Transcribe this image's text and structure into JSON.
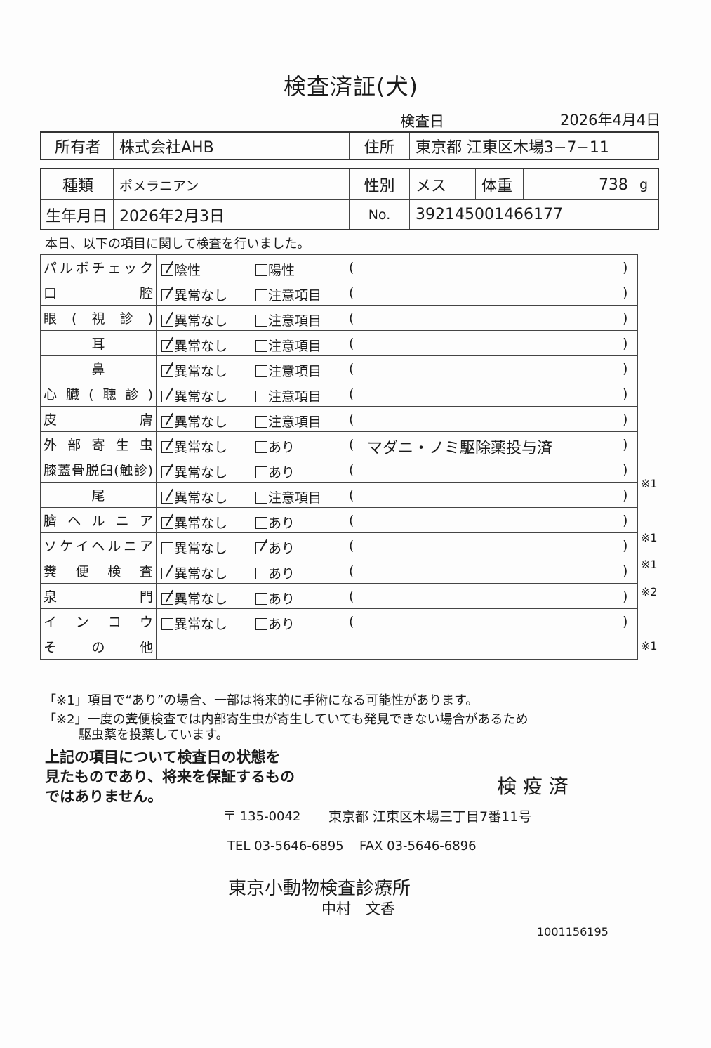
{
  "title": "検査済証(犬)",
  "exam_date_label": "検査日",
  "exam_date": "2026年4月4日",
  "owner": {
    "label": "所有者",
    "value": "株式会社AHB",
    "address_label": "住所",
    "address": "東京都 江東区木場3−7−11"
  },
  "pet": {
    "breed_label": "種類",
    "breed": "ポメラニアン",
    "sex_label": "性別",
    "sex": "メス",
    "weight_label": "体重",
    "weight": "738",
    "weight_unit": "g",
    "birth_label": "生年月日",
    "birth": "2026年2月3日",
    "no_label": "No.",
    "no": "392145001466177"
  },
  "intro": "本日、以下の項目に関して検査を行いました。",
  "items": [
    {
      "label": "パルボチェック",
      "opt1": "陰性",
      "opt2": "陽性",
      "checked": 1,
      "comment": "",
      "note": ""
    },
    {
      "label": "口 腔",
      "opt1": "異常なし",
      "opt2": "注意項目",
      "checked": 1,
      "comment": "",
      "note": ""
    },
    {
      "label": "眼(視診)",
      "opt1": "異常なし",
      "opt2": "注意項目",
      "checked": 1,
      "comment": "",
      "note": ""
    },
    {
      "label": "耳",
      "opt1": "異常なし",
      "opt2": "注意項目",
      "checked": 1,
      "comment": "",
      "note": "",
      "center": true
    },
    {
      "label": "鼻",
      "opt1": "異常なし",
      "opt2": "注意項目",
      "checked": 1,
      "comment": "",
      "note": "",
      "center": true
    },
    {
      "label": "心臓(聴診)",
      "opt1": "異常なし",
      "opt2": "注意項目",
      "checked": 1,
      "comment": "",
      "note": ""
    },
    {
      "label": "皮 膚",
      "opt1": "異常なし",
      "opt2": "注意項目",
      "checked": 1,
      "comment": "",
      "note": ""
    },
    {
      "label": "外部寄生虫",
      "opt1": "異常なし",
      "opt2": "あり",
      "checked": 1,
      "comment": "マダニ・ノミ駆除薬投与済",
      "note": ""
    },
    {
      "label": "膝蓋骨脱臼(触診)",
      "opt1": "異常なし",
      "opt2": "あり",
      "checked": 1,
      "comment": "",
      "note": "※1"
    },
    {
      "label": "尾",
      "opt1": "異常なし",
      "opt2": "注意項目",
      "checked": 1,
      "comment": "",
      "note": "",
      "center": true
    },
    {
      "label": "臍ヘルニア",
      "opt1": "異常なし",
      "opt2": "あり",
      "checked": 1,
      "comment": "",
      "note": "※1"
    },
    {
      "label": "ソケイヘルニア",
      "opt1": "異常なし",
      "opt2": "あり",
      "checked": 2,
      "comment": "",
      "note": "※1"
    },
    {
      "label": "糞便検査",
      "opt1": "異常なし",
      "opt2": "あり",
      "checked": 1,
      "comment": "",
      "note": "※2"
    },
    {
      "label": "泉 門",
      "opt1": "異常なし",
      "opt2": "あり",
      "checked": 1,
      "comment": "",
      "note": ""
    },
    {
      "label": "インコウ",
      "opt1": "異常なし",
      "opt2": "あり",
      "checked": 0,
      "comment": "",
      "note": "※1"
    }
  ],
  "other_label": "その他",
  "footnote1": "「※1」項目で“あり”の場合、一部は将来的に手術になる可能性があります。",
  "footnote2a": "「※2」一度の糞便検査では内部寄生虫が寄生していても発見できない場合があるため",
  "footnote2b": "駆虫薬を投薬しています。",
  "disclaimer": [
    "上記の項目について検査日の状態を",
    "見たものであり、将来を保証するもの",
    "ではありません。"
  ],
  "stamp": "検 疫 済",
  "postal": "〒 135-0042",
  "clinic_address": "東京都 江東区木場三丁目7番11号",
  "tel": "TEL 03-5646-6895",
  "fax": "FAX 03-5646-6896",
  "clinic_name": "東京小動物検査診療所",
  "doctor": "中村　文香",
  "serial": "1001156195"
}
